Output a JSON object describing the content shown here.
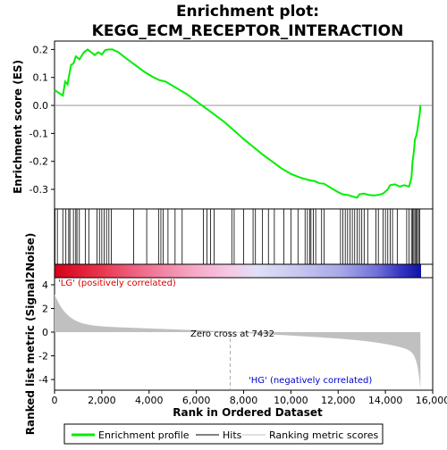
{
  "chart_data": {
    "type": "line",
    "title_line1": "Enrichment plot:",
    "title_line2": "KEGG_ECM_RECEPTOR_INTERACTION",
    "es_panel": {
      "ylabel": "Enrichment score (ES)",
      "ylim": [
        -0.37,
        0.23
      ],
      "yticks": [
        "0.2",
        "0.1",
        "0.0",
        "-0.1",
        "-0.2",
        "-0.3"
      ],
      "ytick_values": [
        0.2,
        0.1,
        0.0,
        -0.1,
        -0.2,
        -0.3
      ],
      "line_color": "#00ee00",
      "series": {
        "x": [
          0,
          350,
          450,
          550,
          700,
          800,
          900,
          1050,
          1250,
          1400,
          1550,
          1700,
          1850,
          2000,
          2150,
          2300,
          2450,
          2700,
          3000,
          3400,
          3800,
          4200,
          4450,
          4700,
          5000,
          5300,
          5600,
          6000,
          6400,
          6800,
          7200,
          7600,
          8000,
          8400,
          8800,
          9200,
          9600,
          10000,
          10400,
          10800,
          11000,
          11200,
          11400,
          11600,
          11800,
          12000,
          12200,
          12400,
          12600,
          12800,
          12900,
          13100,
          13300,
          13500,
          13700,
          13900,
          14100,
          14200,
          14400,
          14600,
          14800,
          15000,
          15100,
          15150,
          15200,
          15250,
          15300,
          15350,
          15400,
          15450,
          15480
        ],
        "y": [
          0.055,
          0.035,
          0.085,
          0.075,
          0.145,
          0.15,
          0.175,
          0.165,
          0.19,
          0.2,
          0.19,
          0.18,
          0.19,
          0.182,
          0.198,
          0.2,
          0.2,
          0.19,
          0.17,
          0.145,
          0.12,
          0.1,
          0.09,
          0.085,
          0.07,
          0.055,
          0.04,
          0.015,
          -0.01,
          -0.035,
          -0.06,
          -0.09,
          -0.12,
          -0.148,
          -0.175,
          -0.2,
          -0.225,
          -0.245,
          -0.258,
          -0.268,
          -0.27,
          -0.278,
          -0.28,
          -0.29,
          -0.3,
          -0.31,
          -0.318,
          -0.32,
          -0.325,
          -0.33,
          -0.318,
          -0.315,
          -0.32,
          -0.322,
          -0.32,
          -0.315,
          -0.3,
          -0.285,
          -0.282,
          -0.29,
          -0.285,
          -0.29,
          -0.26,
          -0.2,
          -0.17,
          -0.12,
          -0.11,
          -0.09,
          -0.06,
          -0.03,
          0.002
        ]
      }
    },
    "hits": [
      20,
      120,
      350,
      480,
      600,
      650,
      800,
      900,
      950,
      1050,
      1300,
      1450,
      1800,
      1900,
      2000,
      2100,
      2200,
      2300,
      2400,
      3350,
      3900,
      4400,
      4500,
      4600,
      4800,
      5100,
      5400,
      6300,
      6450,
      6600,
      6750,
      7500,
      7600,
      8000,
      8400,
      8500,
      8800,
      9050,
      9300,
      9700,
      10000,
      10300,
      10600,
      10700,
      10800,
      10850,
      10950,
      11050,
      11300,
      11400,
      12100,
      12200,
      12300,
      12400,
      12500,
      12600,
      12700,
      12800,
      12900,
      13000,
      13100,
      13250,
      13600,
      13700,
      13900,
      14000,
      14100,
      14200,
      14300,
      14500,
      14900,
      15000,
      15100,
      15150,
      15200,
      15250,
      15300,
      15350,
      15400,
      15450
    ],
    "ranking_panel": {
      "ylabel": "Ranked list metric (Signal2Noise)",
      "ylim": [
        -4.9,
        4.6
      ],
      "yticks": [
        "4",
        "2",
        "0",
        "-2",
        "-4"
      ],
      "ytick_values": [
        4,
        2,
        0,
        -2,
        -4
      ],
      "zero_cross_label": "Zero cross at 7432",
      "zero_cross": 7432,
      "pos_label": "'LG' (positively correlated)",
      "neg_label": "'HG' (negatively correlated)",
      "fill_color": "#c0c0c0"
    },
    "xaxis": {
      "xlabel": "Rank in Ordered Dataset",
      "xlim": [
        0,
        16000
      ],
      "xticks": [
        "0",
        "2,000",
        "4,000",
        "6,000",
        "8,000",
        "10,000",
        "12,000",
        "14,000",
        "16,000"
      ],
      "xtick_values": [
        0,
        2000,
        4000,
        6000,
        8000,
        10000,
        12000,
        14000,
        16000
      ],
      "n_genes": 15480
    },
    "legend": {
      "items": [
        {
          "label": "Enrichment profile",
          "color": "#00ee00",
          "style": "thick-line"
        },
        {
          "label": "Hits",
          "color": "#000000",
          "style": "thin-line"
        },
        {
          "label": "Ranking metric scores",
          "color": "#c0c0c0",
          "style": "thin-line"
        }
      ]
    },
    "colors": {
      "pos_text": "#dd0000",
      "neg_text": "#0000cc",
      "frame": "#000000"
    }
  }
}
